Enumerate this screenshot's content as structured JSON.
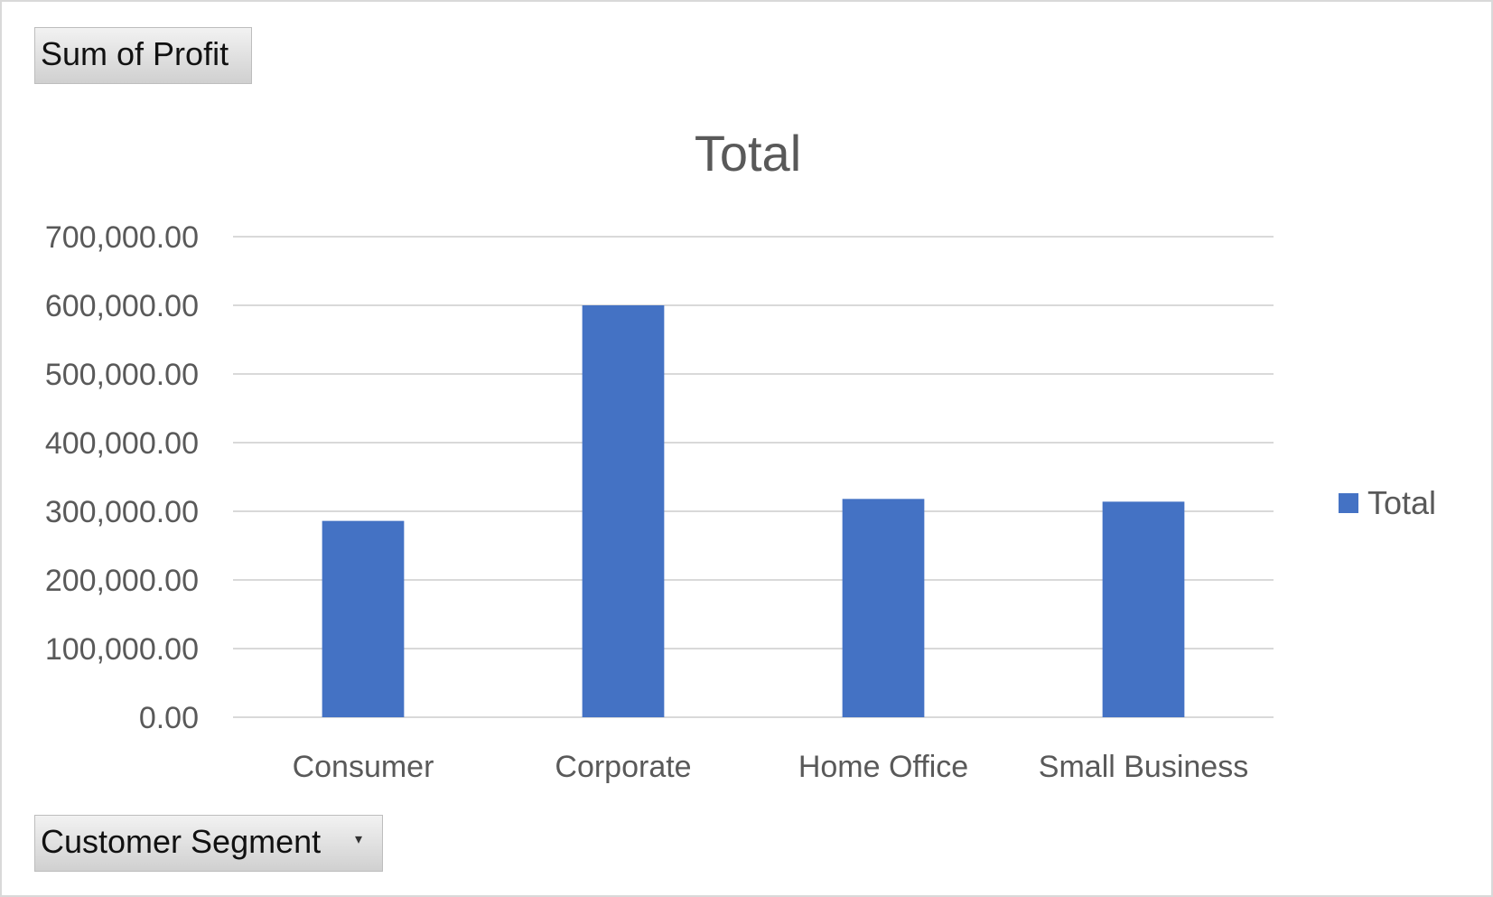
{
  "pivot": {
    "value_field_label": "Sum of Profit",
    "axis_field_label": "Customer Segment",
    "dropdown_glyph": "▾"
  },
  "chart_data": {
    "type": "bar",
    "title": "Total",
    "categories": [
      "Consumer",
      "Corporate",
      "Home Office",
      "Small Business"
    ],
    "series": [
      {
        "name": "Total",
        "values": [
          286000,
          600000,
          318000,
          314000
        ],
        "color": "#4472c4"
      }
    ],
    "ylim": [
      0,
      700000
    ],
    "yticks": [
      0,
      100000,
      200000,
      300000,
      400000,
      500000,
      600000,
      700000
    ],
    "ytick_labels": [
      "0.00",
      "100,000.00",
      "200,000.00",
      "300,000.00",
      "400,000.00",
      "500,000.00",
      "600,000.00",
      "700,000.00"
    ],
    "grid": true,
    "legend_position": "right"
  }
}
